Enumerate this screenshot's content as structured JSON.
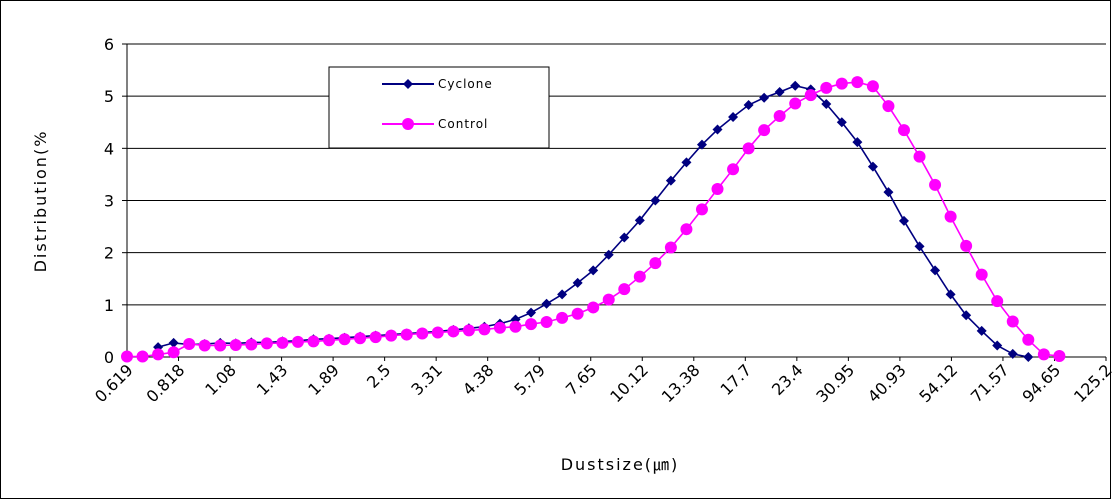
{
  "chart_data": {
    "type": "line",
    "xlabel": "Dustsize(㎛)",
    "ylabel": "Distribution(%",
    "ylim": [
      0,
      6
    ],
    "yticks": [
      "0",
      "1",
      "2",
      "3",
      "4",
      "5",
      "6"
    ],
    "grid": "horizontal",
    "legend_position": "top-left",
    "x_tick_labels": [
      "0.619",
      "0.818",
      "1.08",
      "1.43",
      "1.89",
      "2.5",
      "3.31",
      "4.38",
      "5.79",
      "7.65",
      "10.12",
      "13.38",
      "17.7",
      "23.4",
      "30.95",
      "40.93",
      "54.12",
      "71.57",
      "94.65",
      "125.2"
    ],
    "point_count": 64,
    "series": [
      {
        "name": "Cyclone",
        "color": "#000080",
        "marker": "diamond",
        "values": [
          null,
          null,
          0.19,
          0.27,
          0.24,
          0.25,
          0.27,
          0.26,
          0.28,
          0.28,
          0.3,
          0.31,
          0.34,
          0.35,
          0.37,
          0.39,
          0.41,
          0.43,
          0.45,
          0.47,
          0.49,
          0.52,
          0.55,
          0.58,
          0.64,
          0.72,
          0.85,
          1.02,
          1.2,
          1.42,
          1.66,
          1.96,
          2.29,
          2.62,
          3.0,
          3.38,
          3.73,
          4.07,
          4.36,
          4.6,
          4.83,
          4.97,
          5.08,
          5.2,
          5.13,
          4.85,
          4.5,
          4.12,
          3.65,
          3.16,
          2.61,
          2.12,
          1.66,
          1.2,
          0.8,
          0.5,
          0.22,
          0.06,
          0.0,
          null,
          null,
          null,
          null,
          null
        ]
      },
      {
        "name": "Control",
        "color": "#ff00ff",
        "marker": "circle",
        "values": [
          0.01,
          0.01,
          0.05,
          0.09,
          0.25,
          0.22,
          0.22,
          0.23,
          0.24,
          0.26,
          0.27,
          0.29,
          0.3,
          0.32,
          0.34,
          0.36,
          0.38,
          0.41,
          0.43,
          0.45,
          0.47,
          0.49,
          0.51,
          0.53,
          0.56,
          0.58,
          0.63,
          0.67,
          0.75,
          0.83,
          0.95,
          1.1,
          1.3,
          1.54,
          1.8,
          2.1,
          2.45,
          2.83,
          3.22,
          3.6,
          4.0,
          4.35,
          4.62,
          4.86,
          5.02,
          5.16,
          5.24,
          5.27,
          5.19,
          4.81,
          4.35,
          3.84,
          3.3,
          2.69,
          2.13,
          1.58,
          1.07,
          0.68,
          0.33,
          0.05,
          0.02,
          null,
          null,
          null
        ]
      }
    ]
  }
}
